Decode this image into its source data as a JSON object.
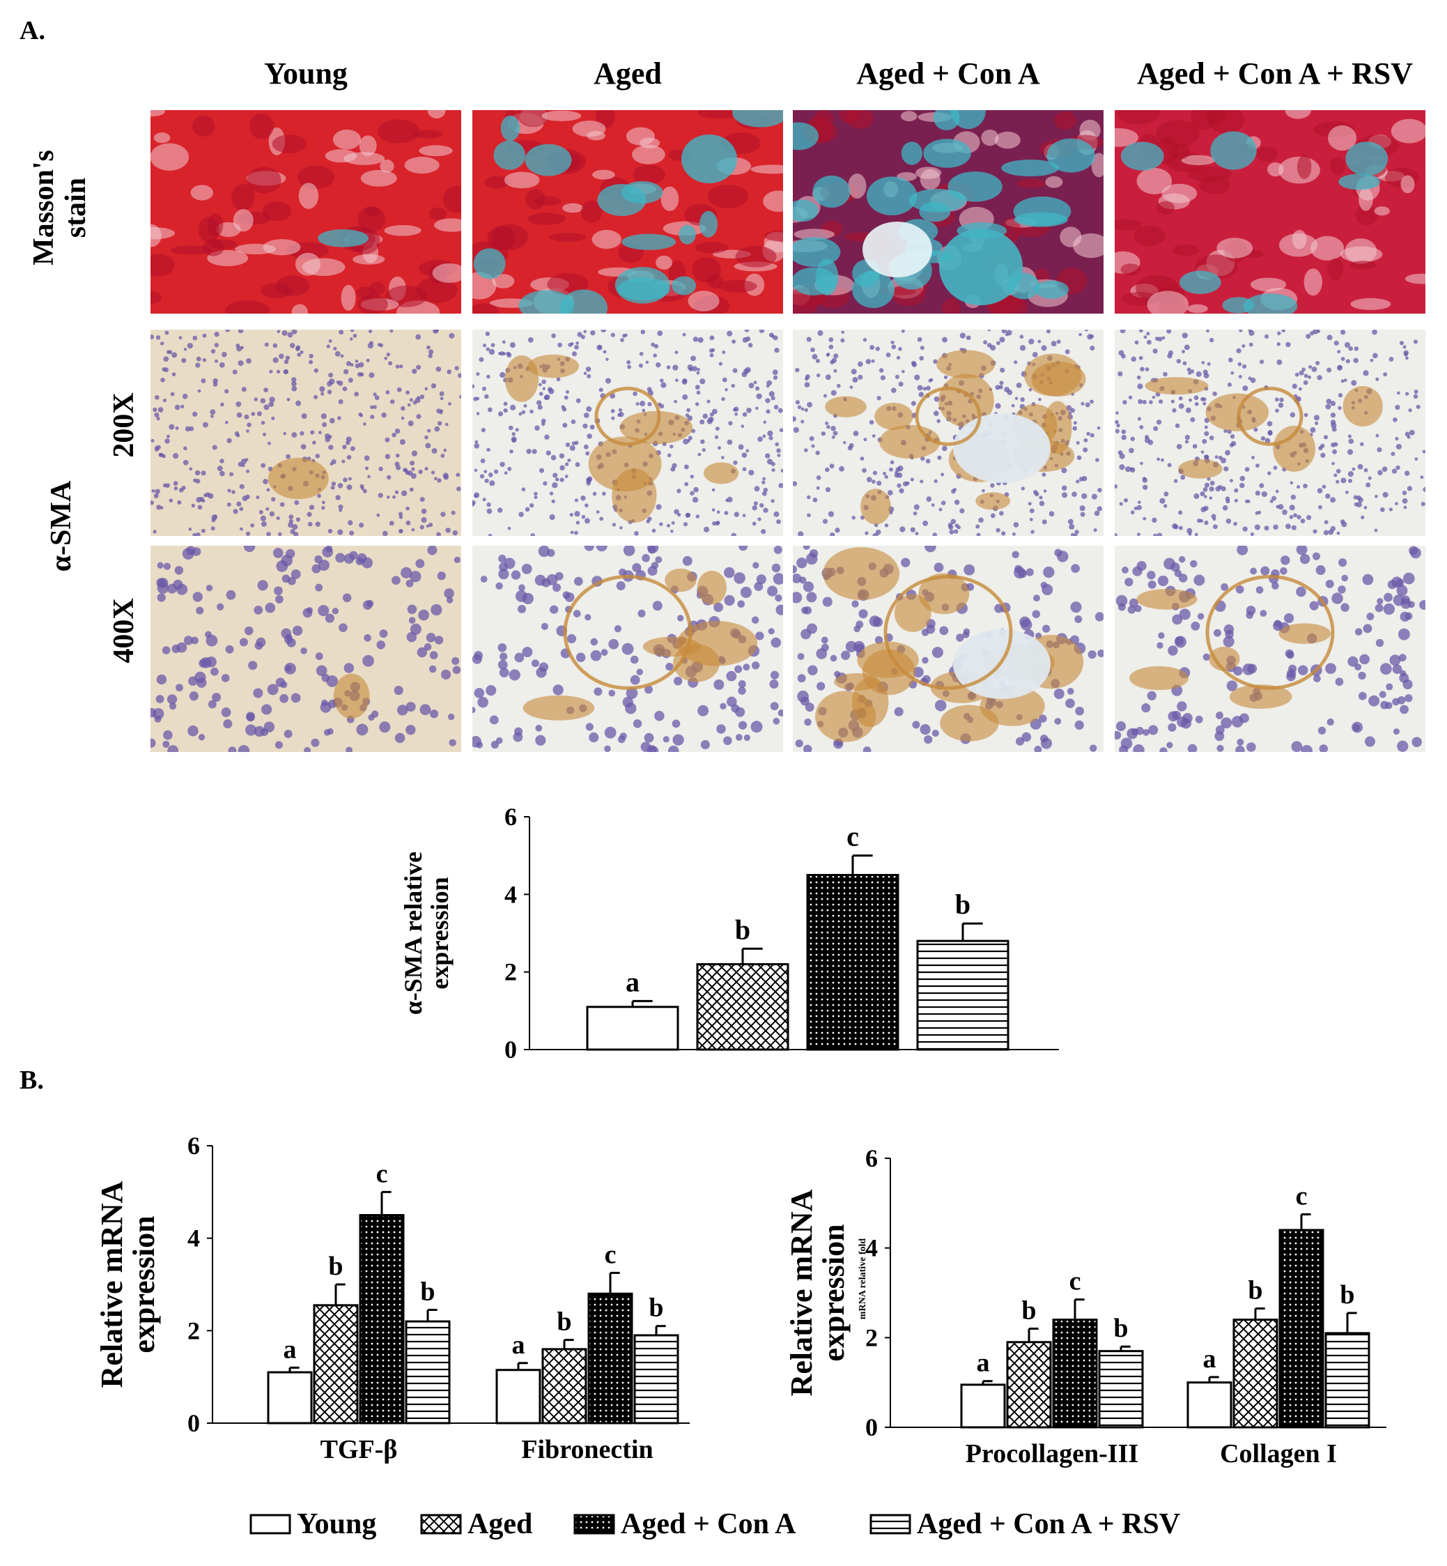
{
  "panels": {
    "a": "A.",
    "b": "B."
  },
  "columns": [
    "Young",
    "Aged",
    "Aged + Con A",
    "Aged + Con A + RSV"
  ],
  "rows": {
    "masson": "Masson's\nstain",
    "sma": "α-SMA",
    "mag200": "200X",
    "mag400": "400X"
  },
  "legend": {
    "items": [
      {
        "label": "Young",
        "pattern": "white"
      },
      {
        "label": "Aged",
        "pattern": "crosshatch"
      },
      {
        "label": "Aged + Con A",
        "pattern": "dots"
      },
      {
        "label": "Aged + Con A + RSV",
        "pattern": "hlines"
      }
    ]
  },
  "colors": {
    "masson_red": "#d8232b",
    "masson_blue": "#3fb7c6",
    "dab_brown": "#c68a3a",
    "hematoxylin": "#6a5aa8"
  },
  "chart_data": [
    {
      "type": "bar",
      "id": "sma_quant",
      "ylabel": "α-SMA relative\nexpression",
      "ylim": [
        0,
        6
      ],
      "yticks": [
        0,
        2,
        4,
        6
      ],
      "categories": [
        "Young",
        "Aged",
        "Aged + Con A",
        "Aged + Con A + RSV"
      ],
      "values": [
        1.1,
        2.2,
        4.5,
        2.8
      ],
      "errors": [
        0.15,
        0.4,
        0.5,
        0.45
      ],
      "labels": [
        "a",
        "b",
        "c",
        "b"
      ],
      "patterns": [
        "white",
        "crosshatch",
        "dots",
        "hlines"
      ]
    },
    {
      "type": "bar",
      "id": "mrna_left",
      "ylabel": "Relative mRNA\nexpression",
      "ylim": [
        0,
        6
      ],
      "yticks": [
        0,
        2,
        4,
        6
      ],
      "categories": [
        "TGF-β",
        "Fibronectin"
      ],
      "series": [
        {
          "name": "Young",
          "values": [
            1.1,
            1.15
          ],
          "errors": [
            0.1,
            0.15
          ],
          "labels": [
            "a",
            "a"
          ]
        },
        {
          "name": "Aged",
          "values": [
            2.55,
            1.6
          ],
          "errors": [
            0.45,
            0.2
          ],
          "labels": [
            "b",
            "b"
          ]
        },
        {
          "name": "Aged + Con A",
          "values": [
            4.5,
            2.8
          ],
          "errors": [
            0.5,
            0.45
          ],
          "labels": [
            "c",
            "c"
          ]
        },
        {
          "name": "Aged + Con A + RSV",
          "values": [
            2.2,
            1.9
          ],
          "errors": [
            0.25,
            0.2
          ],
          "labels": [
            "b",
            "b"
          ]
        }
      ]
    },
    {
      "type": "bar",
      "id": "mrna_right",
      "ylabel": "Relative mRNA\nexpression",
      "ylabel_small": "mRNA relative fold",
      "ylim": [
        0,
        6
      ],
      "yticks": [
        0,
        2,
        4,
        6
      ],
      "categories": [
        "Procollagen-III",
        "Collagen I"
      ],
      "series": [
        {
          "name": "Young",
          "values": [
            0.95,
            1.0
          ],
          "errors": [
            0.08,
            0.12
          ],
          "labels": [
            "a",
            "a"
          ]
        },
        {
          "name": "Aged",
          "values": [
            1.9,
            2.4
          ],
          "errors": [
            0.3,
            0.25
          ],
          "labels": [
            "b",
            "b"
          ]
        },
        {
          "name": "Aged + Con A",
          "values": [
            2.4,
            4.4
          ],
          "errors": [
            0.45,
            0.35
          ],
          "labels": [
            "c",
            "c"
          ]
        },
        {
          "name": "Aged + Con A + RSV",
          "values": [
            1.7,
            2.1
          ],
          "errors": [
            0.1,
            0.45
          ],
          "labels": [
            "b",
            "b"
          ]
        }
      ]
    }
  ]
}
